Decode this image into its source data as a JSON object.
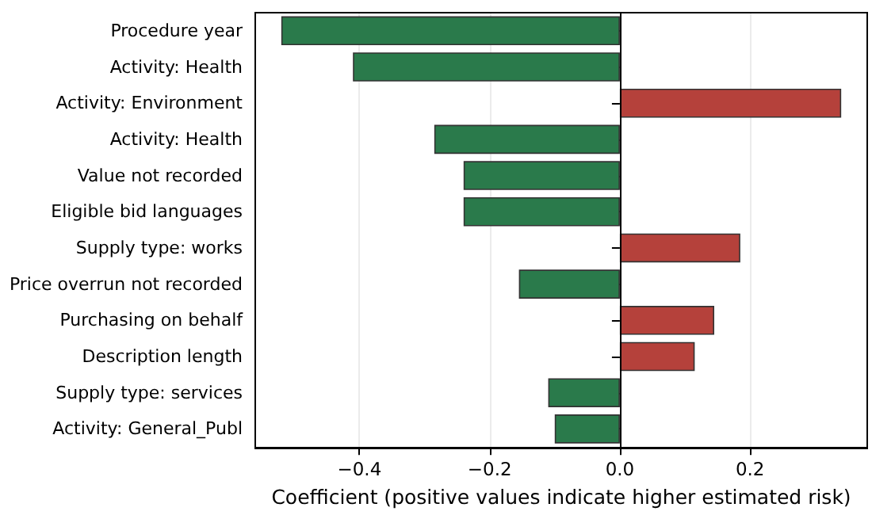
{
  "chart_data": {
    "type": "bar",
    "orientation": "horizontal",
    "xlabel": "Coefficient (positive values indicate higher estimated risk)",
    "categories": [
      "Procedure year",
      "Activity: Health",
      "Activity: Environment",
      "Activity: Health",
      "Value not recorded",
      "Eligible bid languages",
      "Supply type: works",
      "Price overrun not recorded",
      "Purchasing on behalf",
      "Description length",
      "Supply type: services",
      "Activity: General_Publ"
    ],
    "values": [
      -0.52,
      -0.41,
      0.34,
      -0.285,
      -0.24,
      -0.24,
      0.185,
      -0.155,
      0.145,
      0.115,
      -0.11,
      -0.1
    ],
    "colors": [
      "#2a7a4b",
      "#2a7a4b",
      "#b5413b",
      "#2a7a4b",
      "#2a7a4b",
      "#2a7a4b",
      "#b5413b",
      "#2a7a4b",
      "#b5413b",
      "#b5413b",
      "#2a7a4b",
      "#2a7a4b"
    ],
    "xlim": [
      -0.56,
      0.38
    ],
    "xticks": [
      {
        "value": -0.4,
        "label": "−0.4"
      },
      {
        "value": -0.2,
        "label": "−0.2"
      },
      {
        "value": 0,
        "label": "0.0"
      },
      {
        "value": 0.2,
        "label": "0.2"
      }
    ],
    "grid": "x",
    "ref_lines": [
      {
        "axis": "x",
        "value": 0,
        "color": "#000000"
      }
    ]
  }
}
